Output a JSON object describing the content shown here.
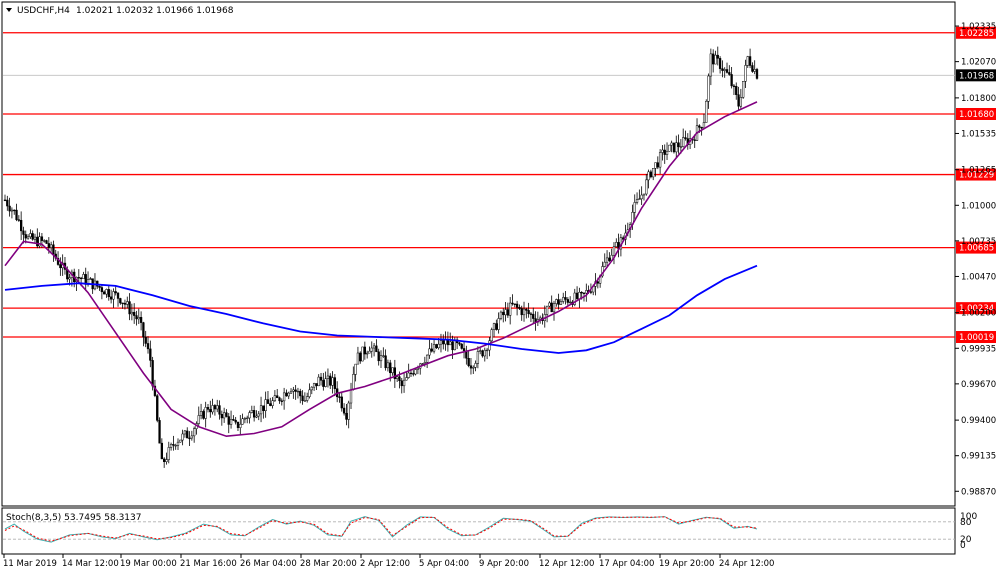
{
  "header": {
    "symbol": "USDCHF,H4",
    "ohlc": "1.02021 1.02032 1.01966 1.01968"
  },
  "indicator": {
    "label": "Stoch(8,3,5) 53.7495 58.3137",
    "levels": [
      "100",
      "80",
      "20",
      "0"
    ]
  },
  "current_price_label": "1.01968",
  "colors": {
    "background": "#ffffff",
    "grid_border": "#000000",
    "hline": "#ff0000",
    "ma_fast": "#800080",
    "ma_slow": "#0000ff",
    "stoch_main": "#40b0b0",
    "stoch_signal": "#ff0000",
    "price_label_bg": "#000000"
  },
  "chart_data": [
    {
      "type": "candlestick",
      "title": "USDCHF,H4",
      "y_ticks": [
        "1.02335",
        "1.02070",
        "1.01800",
        "1.01535",
        "1.01265",
        "1.01000",
        "1.00735",
        "1.00470",
        "1.00200",
        "0.99935",
        "0.99670",
        "0.99400",
        "0.99135",
        "0.98870"
      ],
      "y_tick_values": [
        1.02335,
        1.0207,
        1.018,
        1.01535,
        1.01265,
        1.01,
        1.00735,
        1.0047,
        1.002,
        0.99935,
        0.9967,
        0.994,
        0.99135,
        0.9887
      ],
      "ylim": [
        0.98805,
        1.02395
      ],
      "x_ticks": [
        "11 Mar 2019",
        "14 Mar 12:00",
        "19 Mar 00:00",
        "21 Mar 16:00",
        "26 Mar 04:00",
        "28 Mar 20:00",
        "2 Apr 12:00",
        "5 Apr 04:00",
        "9 Apr 20:00",
        "12 Apr 12:00",
        "17 Apr 04:00",
        "19 Apr 20:00",
        "24 Apr 12:00"
      ],
      "horizontal_levels": [
        {
          "value": 1.02285,
          "label": "1.02285"
        },
        {
          "value": 1.0168,
          "label": "1.01680"
        },
        {
          "value": 1.01229,
          "label": "1.01229"
        },
        {
          "value": 1.00685,
          "label": "1.00685"
        },
        {
          "value": 1.00234,
          "label": "1.00234"
        },
        {
          "value": 1.00019,
          "label": "1.00019"
        }
      ],
      "current_price": 1.01968,
      "price_path": [
        [
          0,
          1.0104
        ],
        [
          4,
          1.0095
        ],
        [
          10,
          1.0075
        ],
        [
          18,
          1.0072
        ],
        [
          26,
          1.005
        ],
        [
          34,
          1.0045
        ],
        [
          42,
          1.0038
        ],
        [
          50,
          1.0031
        ],
        [
          58,
          1.0014
        ],
        [
          63,
          0.9985
        ],
        [
          68,
          0.9907
        ],
        [
          74,
          0.9925
        ],
        [
          80,
          0.993
        ],
        [
          88,
          0.995
        ],
        [
          94,
          0.9945
        ],
        [
          100,
          0.9935
        ],
        [
          106,
          0.9945
        ],
        [
          112,
          0.995
        ],
        [
          118,
          0.9955
        ],
        [
          124,
          0.9965
        ],
        [
          130,
          0.9955
        ],
        [
          136,
          0.997
        ],
        [
          142,
          0.9968
        ],
        [
          148,
          0.9945
        ],
        [
          152,
          0.9985
        ],
        [
          158,
          0.9995
        ],
        [
          166,
          0.998
        ],
        [
          172,
          0.9965
        ],
        [
          178,
          0.998
        ],
        [
          184,
          0.999
        ],
        [
          190,
          0.9998
        ],
        [
          196,
          0.9995
        ],
        [
          202,
          0.9982
        ],
        [
          208,
          0.9993
        ],
        [
          214,
          1.0015
        ],
        [
          220,
          1.0025
        ],
        [
          226,
          1.002
        ],
        [
          232,
          1.0015
        ],
        [
          238,
          1.0027
        ],
        [
          244,
          1.003
        ],
        [
          250,
          1.0031
        ],
        [
          256,
          1.0043
        ],
        [
          262,
          1.0063
        ],
        [
          268,
          1.0075
        ],
        [
          272,
          1.0095
        ],
        [
          276,
          1.0108
        ],
        [
          280,
          1.0125
        ],
        [
          286,
          1.014
        ],
        [
          292,
          1.0145
        ],
        [
          298,
          1.015
        ],
        [
          303,
          1.0164
        ],
        [
          306,
          1.021
        ],
        [
          310,
          1.0205
        ],
        [
          314,
          1.0195
        ],
        [
          318,
          1.0175
        ],
        [
          322,
          1.021
        ],
        [
          326,
          1.0198
        ]
      ],
      "series": [
        {
          "name": "",
          "values": [
            [
              0,
              1.0055
            ],
            [
              8,
              1.0073
            ],
            [
              16,
              1.0071
            ],
            [
              24,
              1.0058
            ],
            [
              36,
              1.0035
            ],
            [
              48,
              1.0005
            ],
            [
              60,
              0.9975
            ],
            [
              72,
              0.9948
            ],
            [
              84,
              0.9935
            ],
            [
              96,
              0.9928
            ],
            [
              108,
              0.993
            ],
            [
              120,
              0.9935
            ],
            [
              132,
              0.9948
            ],
            [
              144,
              0.996
            ],
            [
              156,
              0.9965
            ],
            [
              168,
              0.9972
            ],
            [
              180,
              0.998
            ],
            [
              192,
              0.9988
            ],
            [
              204,
              0.9993
            ],
            [
              216,
              1.0001
            ],
            [
              228,
              1.0011
            ],
            [
              240,
              1.0021
            ],
            [
              252,
              1.0033
            ],
            [
              264,
              1.0061
            ],
            [
              276,
              1.0098
            ],
            [
              288,
              1.0129
            ],
            [
              300,
              1.0154
            ],
            [
              312,
              1.0166
            ],
            [
              326,
              1.0177
            ]
          ]
        },
        {
          "name": "",
          "values": [
            [
              0,
              1.0037
            ],
            [
              16,
              1.004
            ],
            [
              32,
              1.0042
            ],
            [
              48,
              1.004
            ],
            [
              64,
              1.0033
            ],
            [
              80,
              1.0025
            ],
            [
              96,
              1.0019
            ],
            [
              112,
              1.0012
            ],
            [
              128,
              1.0006
            ],
            [
              144,
              1.0003
            ],
            [
              160,
              1.0002
            ],
            [
              176,
              1.0001
            ],
            [
              192,
              1.0
            ],
            [
              208,
              0.9997
            ],
            [
              224,
              0.9993
            ],
            [
              240,
              0.999
            ],
            [
              252,
              0.9992
            ],
            [
              264,
              0.9998
            ],
            [
              276,
              1.0008
            ],
            [
              288,
              1.0018
            ],
            [
              300,
              1.0033
            ],
            [
              312,
              1.0045
            ],
            [
              326,
              1.0055
            ]
          ]
        }
      ]
    },
    {
      "type": "line",
      "title": "Stoch(8,3,5) 53.7495 58.3137",
      "ylim": [
        0,
        100
      ],
      "levels": [
        80,
        20
      ],
      "series": [
        {
          "name": "",
          "values": [
            [
              0,
              55
            ],
            [
              4,
              72
            ],
            [
              8,
              48
            ],
            [
              14,
              20
            ],
            [
              20,
              10
            ],
            [
              28,
              35
            ],
            [
              36,
              40
            ],
            [
              42,
              28
            ],
            [
              48,
              22
            ],
            [
              54,
              40
            ],
            [
              60,
              28
            ],
            [
              66,
              18
            ],
            [
              72,
              28
            ],
            [
              78,
              40
            ],
            [
              86,
              72
            ],
            [
              92,
              62
            ],
            [
              98,
              35
            ],
            [
              104,
              32
            ],
            [
              110,
              62
            ],
            [
              116,
              88
            ],
            [
              122,
              72
            ],
            [
              128,
              82
            ],
            [
              134,
              68
            ],
            [
              140,
              35
            ],
            [
              146,
              30
            ],
            [
              150,
              82
            ],
            [
              156,
              98
            ],
            [
              162,
              85
            ],
            [
              168,
              28
            ],
            [
              174,
              68
            ],
            [
              180,
              97
            ],
            [
              186,
              95
            ],
            [
              192,
              55
            ],
            [
              198,
              32
            ],
            [
              204,
              35
            ],
            [
              210,
              62
            ],
            [
              216,
              92
            ],
            [
              222,
              88
            ],
            [
              228,
              82
            ],
            [
              234,
              50
            ],
            [
              238,
              28
            ],
            [
              244,
              30
            ],
            [
              250,
              75
            ],
            [
              256,
              93
            ],
            [
              262,
              97
            ],
            [
              268,
              95
            ],
            [
              274,
              97
            ],
            [
              280,
              95
            ],
            [
              286,
              98
            ],
            [
              292,
              72
            ],
            [
              298,
              85
            ],
            [
              304,
              96
            ],
            [
              310,
              90
            ],
            [
              316,
              58
            ],
            [
              322,
              64
            ],
            [
              326,
              55
            ]
          ]
        },
        {
          "name": "",
          "values": [
            [
              0,
              50
            ],
            [
              4,
              66
            ],
            [
              8,
              52
            ],
            [
              14,
              24
            ],
            [
              20,
              13
            ],
            [
              28,
              32
            ],
            [
              36,
              40
            ],
            [
              42,
              31
            ],
            [
              48,
              24
            ],
            [
              54,
              37
            ],
            [
              60,
              31
            ],
            [
              66,
              21
            ],
            [
              72,
              26
            ],
            [
              78,
              37
            ],
            [
              86,
              68
            ],
            [
              92,
              64
            ],
            [
              98,
              39
            ],
            [
              104,
              33
            ],
            [
              110,
              58
            ],
            [
              116,
              84
            ],
            [
              122,
              75
            ],
            [
              128,
              80
            ],
            [
              134,
              71
            ],
            [
              140,
              39
            ],
            [
              146,
              31
            ],
            [
              150,
              76
            ],
            [
              156,
              95
            ],
            [
              162,
              88
            ],
            [
              168,
              33
            ],
            [
              174,
              63
            ],
            [
              180,
              94
            ],
            [
              186,
              96
            ],
            [
              192,
              60
            ],
            [
              198,
              35
            ],
            [
              204,
              34
            ],
            [
              210,
              58
            ],
            [
              216,
              89
            ],
            [
              222,
              89
            ],
            [
              228,
              84
            ],
            [
              234,
              54
            ],
            [
              238,
              31
            ],
            [
              244,
              30
            ],
            [
              250,
              70
            ],
            [
              256,
              91
            ],
            [
              262,
              96
            ],
            [
              268,
              96
            ],
            [
              274,
              96
            ],
            [
              280,
              96
            ],
            [
              286,
              97
            ],
            [
              292,
              76
            ],
            [
              298,
              83
            ],
            [
              304,
              94
            ],
            [
              310,
              92
            ],
            [
              316,
              62
            ],
            [
              322,
              62
            ],
            [
              326,
              58
            ]
          ]
        }
      ]
    }
  ]
}
